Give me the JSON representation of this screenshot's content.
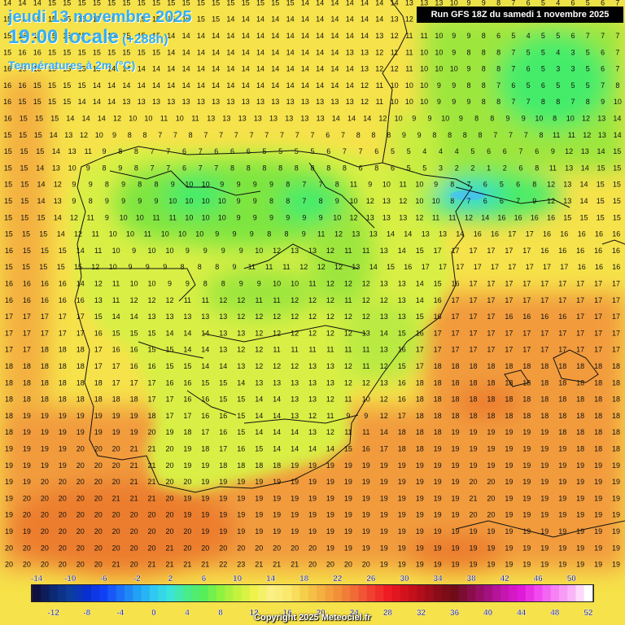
{
  "header": {
    "date": "jeudi 13 novembre 2025",
    "time": "19:00 locale",
    "lead": "(+288h)",
    "variable": "Températures à 2m (°C)",
    "run": "Run GFS 18Z du samedi 1 novembre 2025"
  },
  "footer": {
    "copyright": "Copyright 2025 Meteociel.fr"
  },
  "colors": {
    "ocean_warm": "#f19a3a",
    "ocean_yellow": "#f6e24a",
    "land_cool": "#7fe340",
    "land_cold": "#45ec6b",
    "border": "#111111"
  },
  "legend": {
    "values": [
      -14,
      -13,
      -12,
      -11,
      -10,
      -9,
      -8,
      -7,
      -6,
      -5,
      -4,
      -3,
      -2,
      -1,
      0,
      1,
      2,
      3,
      4,
      5,
      6,
      7,
      8,
      9,
      10,
      11,
      12,
      13,
      14,
      15,
      16,
      17,
      18,
      19,
      20,
      21,
      22,
      23,
      24,
      25,
      26,
      27,
      28,
      29,
      30,
      31,
      32,
      33,
      34,
      35,
      36,
      37,
      38,
      39,
      40,
      41,
      42,
      43,
      44,
      45,
      46,
      47,
      48,
      49,
      50,
      51,
      52
    ],
    "top_labels": [
      "-14",
      "-10",
      "-6",
      "-2",
      "2",
      "6",
      "10",
      "14",
      "18",
      "22",
      "26",
      "30",
      "34",
      "38",
      "42",
      "46",
      "50"
    ],
    "bottom_labels": [
      "-12",
      "-8",
      "-4",
      "0",
      "4",
      "8",
      "12",
      "16",
      "20",
      "24",
      "28",
      "32",
      "36",
      "40",
      "44",
      "48",
      "52"
    ]
  },
  "grid": {
    "rows": [
      "14 14 14 15 15 15 15 15 15 15 15 15 15 15 15 15 15 15 15 15 14 14 14 14 14 14 14 13 13 13 10 9 9 8 7 6 5 4 6 5 6 7",
      "15 15 15 15 15 15 15 15 15 15 15 15 15 15 15 14 14 14 14 14 14 14 14 14 14 14 13 12 11 10 9 9 8 7 6 5 5 4 5 6 6 7",
      "15 15 15 15 15 15 15 15 15 15 15 14 14 14 14 14 14 14 14 14 14 14 14 14 14 13 12 11 11 10 9 9 8 6 5 4 5 5 6 7 7 7",
      "15 16 16 15 15 15 15 15 15 15 15 14 14 14 14 14 14 14 14 14 14 14 14 13 13 12 11 11 10 10 9 8 8 8 7 5 5 4 3 5 6 7",
      "16 16 15 15 15 15 15 14 14 14 14 14 14 14 14 14 14 14 14 14 14 14 14 14 13 12 12 11 10 10 10 9 8 8 7 6 5 3 3 5 6 7",
      "16 16 15 15 15 15 14 14 14 14 14 14 14 14 14 14 14 14 14 14 14 14 14 14 12 11 10 10 10 9 9 8 8 7 6 5 6 5 5 5 7 8",
      "16 15 15 15 15 14 14 14 13 13 13 13 13 13 13 13 13 13 13 13 13 13 13 13 12 11 10 10 10 9 9 9 8 8 7 7 8 8 7 8 9 10",
      "16 15 15 15 14 14 14 12 10 10 11 10 11 13 13 13 13 13 13 13 13 14 14 14 12 10 9 9 10 9 8 8 9 9 10 8 10 12 13 14",
      "15 15 15 14 13 12 10 9 8 8 7 7 8 7 7 7 7 7 7 7 7 6 7 8 8 8 9 9 8 8 8 8 7 7 7 8 11 11 12 13 14",
      "15 15 15 14 13 11 9 8 8 7 7 6 7 6 6 6 5 5 5 5 6 7 7 6 5 5 4 4 4 5 6 6 7 6 9 12 13 14 15",
      "15 15 14 13 10 9 8 9 8 7 7 6 7 7 8 8 8 8 8 8 8 8 6 8 6 5 5 3 2 2 1 2 6 8 11 13 14 15 15",
      "15 15 14 12 9 9 8 9 8 8 9 10 10 9 9 9 9 8 7 7 8 11 9 10 11 10 9 8 7 6 5 6 8 12 13 14 15 15",
      "15 15 14 13 9 8 9 9 9 9 10 10 10 10 9 9 8 8 7 8 9 10 12 13 12 10 10 8 7 6 6 7 9 12 13 14 15 15",
      "15 15 15 14 12 11 9 10 10 11 11 10 10 10 9 9 9 9 9 9 10 12 13 13 13 12 11 11 12 14 16 16 16 16 15 15 15 15",
      "15 15 15 14 12 11 10 10 11 10 10 10 9 9 9 8 8 9 11 12 13 13 14 14 13 13 14 16 16 17 17 16 16 16 16 16",
      "16 15 15 15 14 11 10 9 10 10 9 9 9 9 10 12 13 13 12 11 11 13 14 15 17 17 17 17 17 17 16 16 16 16 16",
      "15 15 15 15 15 12 10 9 9 9 8 8 8 9 11 11 11 12 12 12 13 14 15 16 17 17 17 17 17 17 17 17 17 16 16 16",
      "16 16 16 16 14 12 11 10 10 9 9 8 8 9 9 10 10 11 12 12 12 13 13 14 15 16 17 17 17 17 17 17 17 17 17",
      "16 16 16 16 16 13 11 12 12 12 11 11 12 12 11 11 12 12 12 11 12 12 13 14 16 17 17 17 17 17 17 17 17 17 17",
      "17 17 17 17 17 15 14 14 13 13 13 13 13 12 12 12 12 12 12 12 12 13 13 15 16 17 17 17 16 16 16 16 17 17 17",
      "17 17 17 17 17 16 15 15 15 14 14 14 13 13 12 12 12 12 12 12 13 14 15 16 17 17 17 17 17 17 17 17 17 17 17",
      "17 17 18 18 18 17 16 16 15 15 14 14 13 12 12 11 11 11 11 11 11 13 16 17 17 17 17 17 17 17 17 17 17 17 17",
      "18 18 18 18 18 17 17 16 16 15 15 14 14 13 12 12 12 13 13 12 11 12 15 17 18 18 18 18 18 18 18 18 18 18 18",
      "18 18 18 18 18 18 17 17 17 16 16 15 15 14 13 13 13 13 13 12 12 13 16 18 18 18 18 18 18 18 18 18 18 18 18",
      "18 18 18 18 18 18 18 18 17 17 16 16 15 15 14 14 13 13 12 11 10 12 16 18 18 18 18 18 18 18 18 18 18 18 18",
      "18 19 19 19 19 19 19 19 18 17 17 16 16 15 14 14 13 12 11 9 9 12 17 18 18 18 18 18 18 18 18 18 18 18 18",
      "18 19 19 19 19 19 19 19 20 19 18 17 16 15 14 14 14 13 12 11 11 14 18 18 18 19 19 19 19 19 19 18 18 18 18",
      "19 19 19 19 20 20 20 21 21 20 19 18 17 16 15 14 14 14 14 15 16 17 18 18 19 19 19 19 19 19 19 19 18 18 18",
      "19 19 19 19 20 20 20 21 21 20 19 19 18 18 18 18 19 19 19 19 19 19 19 19 19 19 19 19 19 19 19 19 19 19 19",
      "19 19 20 20 20 20 20 21 21 20 20 19 19 19 19 19 19 19 19 19 19 19 19 19 19 19 20 20 19 19 19 19 19 19 19",
      "19 20 20 20 20 20 21 21 21 20 19 19 19 19 19 19 19 19 19 19 19 19 19 19 19 19 21 20 19 19 19 19 19 19 19",
      "19 20 20 20 20 20 20 20 20 20 19 19 19 19 19 19 19 19 19 19 19 19 19 19 19 19 20 20 19 19 19 19 19 19 19",
      "19 19 20 20 20 20 20 20 20 20 20 19 19 19 19 19 19 19 19 19 19 19 19 19 19 19 19 19 19 19 19 19 19 19 19",
      "20 20 20 20 20 20 20 20 20 21 20 20 20 20 20 20 20 20 19 19 19 19 19 19 19 19 19 19 19 19 19 19 19 19 19",
      "20 20 20 20 20 20 21 20 21 21 21 21 22 23 21 21 21 20 20 20 20 19 19 19 19 19 19 19 19 19 19 19 19 19 19"
    ]
  }
}
